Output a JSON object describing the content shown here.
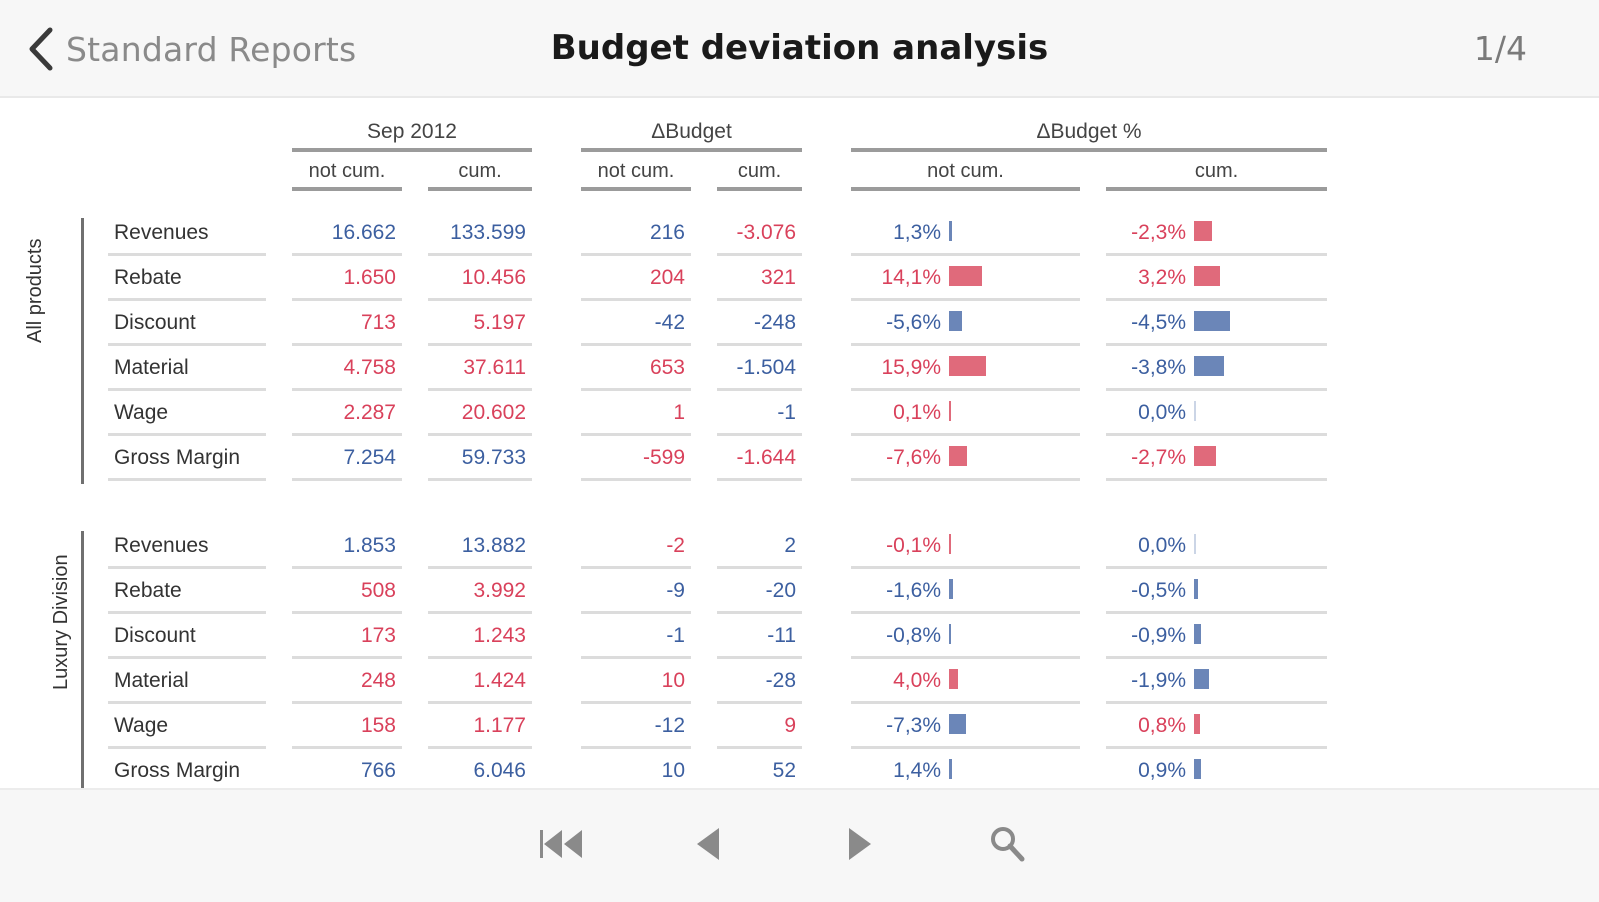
{
  "header": {
    "back_label": "Standard Reports",
    "title": "Budget deviation analysis",
    "page_indicator": "1/4"
  },
  "columns": {
    "groups": [
      {
        "label": "Sep 2012",
        "sub": [
          "not cum.",
          "cum."
        ]
      },
      {
        "label": "ΔBudget",
        "sub": [
          "not cum.",
          "cum."
        ]
      },
      {
        "label": "ΔBudget %",
        "sub": [
          "not cum.",
          "cum."
        ]
      }
    ]
  },
  "colors": {
    "positive": "#3c5fa0",
    "negative": "#d9415b",
    "bar_blue": "#6b86b8",
    "bar_red": "#e06a7b"
  },
  "sections": [
    {
      "label": "All products",
      "rows": [
        {
          "name": "Revenues",
          "sep_nc": "16.662",
          "sep_c": "133.599",
          "db_nc": "216",
          "db_c": "-3.076",
          "dp_nc": "1,3%",
          "dp_c": "-2,3%",
          "colors": [
            "blue",
            "blue",
            "blue",
            "red",
            "blue",
            "red"
          ],
          "bars": {
            "nc": 0.013,
            "c": -0.023
          }
        },
        {
          "name": "Rebate",
          "sep_nc": "1.650",
          "sep_c": "10.456",
          "db_nc": "204",
          "db_c": "321",
          "dp_nc": "14,1%",
          "dp_c": "3,2%",
          "colors": [
            "red",
            "red",
            "red",
            "red",
            "red",
            "red"
          ],
          "bars": {
            "nc": 0.141,
            "c": 0.032
          }
        },
        {
          "name": "Discount",
          "sep_nc": "713",
          "sep_c": "5.197",
          "db_nc": "-42",
          "db_c": "-248",
          "dp_nc": "-5,6%",
          "dp_c": "-4,5%",
          "colors": [
            "red",
            "red",
            "blue",
            "blue",
            "blue",
            "blue"
          ],
          "bars": {
            "nc": -0.056,
            "c": -0.045
          }
        },
        {
          "name": "Material",
          "sep_nc": "4.758",
          "sep_c": "37.611",
          "db_nc": "653",
          "db_c": "-1.504",
          "dp_nc": "15,9%",
          "dp_c": "-3,8%",
          "colors": [
            "red",
            "red",
            "red",
            "blue",
            "red",
            "blue"
          ],
          "bars": {
            "nc": 0.159,
            "c": -0.038
          }
        },
        {
          "name": "Wage",
          "sep_nc": "2.287",
          "sep_c": "20.602",
          "db_nc": "1",
          "db_c": "-1",
          "dp_nc": "0,1%",
          "dp_c": "0,0%",
          "colors": [
            "red",
            "red",
            "red",
            "blue",
            "red",
            "blue"
          ],
          "bars": {
            "nc": 0.001,
            "c": 0.0
          }
        },
        {
          "name": "Gross Margin",
          "sep_nc": "7.254",
          "sep_c": "59.733",
          "db_nc": "-599",
          "db_c": "-1.644",
          "dp_nc": "-7,6%",
          "dp_c": "-2,7%",
          "colors": [
            "blue",
            "blue",
            "red",
            "red",
            "red",
            "red"
          ],
          "bars": {
            "nc": -0.076,
            "c": -0.027
          }
        }
      ]
    },
    {
      "label": "Luxury Division",
      "rows": [
        {
          "name": "Revenues",
          "sep_nc": "1.853",
          "sep_c": "13.882",
          "db_nc": "-2",
          "db_c": "2",
          "dp_nc": "-0,1%",
          "dp_c": "0,0%",
          "colors": [
            "blue",
            "blue",
            "red",
            "blue",
            "red",
            "blue"
          ],
          "bars": {
            "nc": -0.001,
            "c": 0.0
          }
        },
        {
          "name": "Rebate",
          "sep_nc": "508",
          "sep_c": "3.992",
          "db_nc": "-9",
          "db_c": "-20",
          "dp_nc": "-1,6%",
          "dp_c": "-0,5%",
          "colors": [
            "red",
            "red",
            "blue",
            "blue",
            "blue",
            "blue"
          ],
          "bars": {
            "nc": -0.016,
            "c": -0.005
          }
        },
        {
          "name": "Discount",
          "sep_nc": "173",
          "sep_c": "1.243",
          "db_nc": "-1",
          "db_c": "-11",
          "dp_nc": "-0,8%",
          "dp_c": "-0,9%",
          "colors": [
            "red",
            "red",
            "blue",
            "blue",
            "blue",
            "blue"
          ],
          "bars": {
            "nc": -0.008,
            "c": -0.009
          }
        },
        {
          "name": "Material",
          "sep_nc": "248",
          "sep_c": "1.424",
          "db_nc": "10",
          "db_c": "-28",
          "dp_nc": "4,0%",
          "dp_c": "-1,9%",
          "colors": [
            "red",
            "red",
            "red",
            "blue",
            "red",
            "blue"
          ],
          "bars": {
            "nc": 0.04,
            "c": -0.019
          }
        },
        {
          "name": "Wage",
          "sep_nc": "158",
          "sep_c": "1.177",
          "db_nc": "-12",
          "db_c": "9",
          "dp_nc": "-7,3%",
          "dp_c": "0,8%",
          "colors": [
            "red",
            "red",
            "blue",
            "red",
            "blue",
            "red"
          ],
          "bars": {
            "nc": -0.073,
            "c": 0.008
          }
        },
        {
          "name": "Gross Margin",
          "sep_nc": "766",
          "sep_c": "6.046",
          "db_nc": "10",
          "db_c": "52",
          "dp_nc": "1,4%",
          "dp_c": "0,9%",
          "colors": [
            "blue",
            "blue",
            "blue",
            "blue",
            "blue",
            "blue"
          ],
          "bars": {
            "nc": 0.014,
            "c": 0.009
          }
        }
      ]
    }
  ],
  "footer": {
    "first_icon": "skip-to-first-icon",
    "prev_icon": "previous-icon",
    "next_icon": "next-icon",
    "search_icon": "search-icon"
  }
}
